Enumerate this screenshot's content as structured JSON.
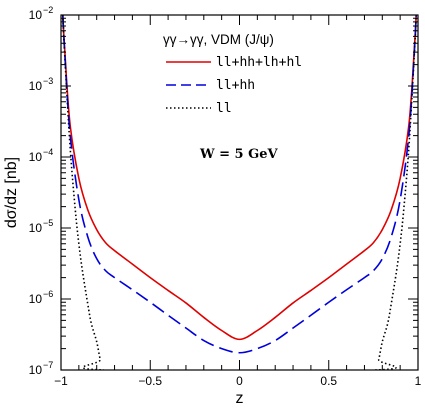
{
  "chart_data": {
    "type": "line",
    "title": "",
    "xlabel": "z",
    "ylabel": "dσ/dz [nb]",
    "xlim": [
      -1,
      1
    ],
    "ylim": [
      1e-07,
      0.01
    ],
    "yscale": "log",
    "grid": false,
    "x_ticks": [
      {
        "value": -1,
        "label": "−1"
      },
      {
        "value": -0.5,
        "label": "−0.5"
      },
      {
        "value": 0,
        "label": "0"
      },
      {
        "value": 0.5,
        "label": "0.5"
      },
      {
        "value": 1,
        "label": "1"
      }
    ],
    "y_ticks": [
      {
        "value": 1e-07,
        "mant": "10",
        "exp": "−7"
      },
      {
        "value": 1e-06,
        "mant": "10",
        "exp": "−6"
      },
      {
        "value": 1e-05,
        "mant": "10",
        "exp": "−5"
      },
      {
        "value": 0.0001,
        "mant": "10",
        "exp": "−4"
      },
      {
        "value": 0.001,
        "mant": "10",
        "exp": "−3"
      },
      {
        "value": 0.01,
        "mant": "10",
        "exp": "−2"
      }
    ],
    "legend": {
      "title": "γγ→γγ, VDM (J/ψ)",
      "placement": "top-center"
    },
    "annotation": "W = 5 GeV",
    "series": [
      {
        "name": "ll+hh+lh+hl",
        "color": "#e00000",
        "style": "solid",
        "x": [
          -0.99,
          -0.98,
          -0.95,
          -0.9,
          -0.85,
          -0.8,
          -0.75,
          -0.7,
          -0.6,
          -0.5,
          -0.4,
          -0.3,
          -0.2,
          -0.1,
          0,
          0.1,
          0.2,
          0.3,
          0.4,
          0.5,
          0.6,
          0.7,
          0.75,
          0.8,
          0.85,
          0.9,
          0.95,
          0.98,
          0.99
        ],
        "y": [
          0.01,
          0.0035,
          0.0003,
          5e-05,
          1.8e-05,
          9.5e-06,
          6.2e-06,
          4.8e-06,
          3.1e-06,
          2e-06,
          1.32e-06,
          8.8e-07,
          5.5e-07,
          3.6e-07,
          2.7e-07,
          3.6e-07,
          5.5e-07,
          8.8e-07,
          1.32e-06,
          2e-06,
          3.1e-06,
          4.8e-06,
          6.2e-06,
          9.5e-06,
          1.8e-05,
          5e-05,
          0.0003,
          0.0035,
          0.01
        ]
      },
      {
        "name": "ll+hh",
        "color": "#0000dd",
        "style": "dashed",
        "x": [
          -0.99,
          -0.98,
          -0.95,
          -0.9,
          -0.85,
          -0.8,
          -0.75,
          -0.7,
          -0.6,
          -0.5,
          -0.4,
          -0.3,
          -0.2,
          -0.1,
          0,
          0.1,
          0.2,
          0.3,
          0.4,
          0.5,
          0.6,
          0.7,
          0.75,
          0.8,
          0.85,
          0.9,
          0.95,
          0.98,
          0.99
        ],
        "y": [
          0.01,
          0.0032,
          0.00022,
          2.5e-05,
          7.5e-06,
          3.7e-06,
          2.5e-06,
          2e-06,
          1.35e-06,
          9e-07,
          5.9e-07,
          3.9e-07,
          2.6e-07,
          2e-07,
          1.75e-07,
          2e-07,
          2.6e-07,
          3.9e-07,
          5.9e-07,
          9e-07,
          1.35e-06,
          2e-06,
          2.5e-06,
          3.7e-06,
          7.5e-06,
          2.5e-05,
          0.00022,
          0.0032,
          0.01
        ]
      },
      {
        "name": "ll",
        "color": "#000000",
        "style": "dotted",
        "x": [
          -0.99,
          -0.98,
          -0.95,
          -0.92,
          -0.9,
          -0.88,
          -0.85,
          -0.83,
          -0.8,
          -0.78,
          -0.76,
          0.76,
          0.78,
          0.8,
          0.83,
          0.85,
          0.88,
          0.9,
          0.92,
          0.95,
          0.98,
          0.99
        ],
        "y": [
          0.01,
          0.003,
          0.00015,
          1.8e-05,
          6e-06,
          2.5e-06,
          8.5e-07,
          4.5e-07,
          2.5e-07,
          1.4e-07,
          1e-07,
          1e-07,
          1.4e-07,
          2.5e-07,
          4.5e-07,
          8.5e-07,
          2.5e-06,
          6e-06,
          1.8e-05,
          0.00015,
          0.003,
          0.01
        ]
      }
    ]
  }
}
